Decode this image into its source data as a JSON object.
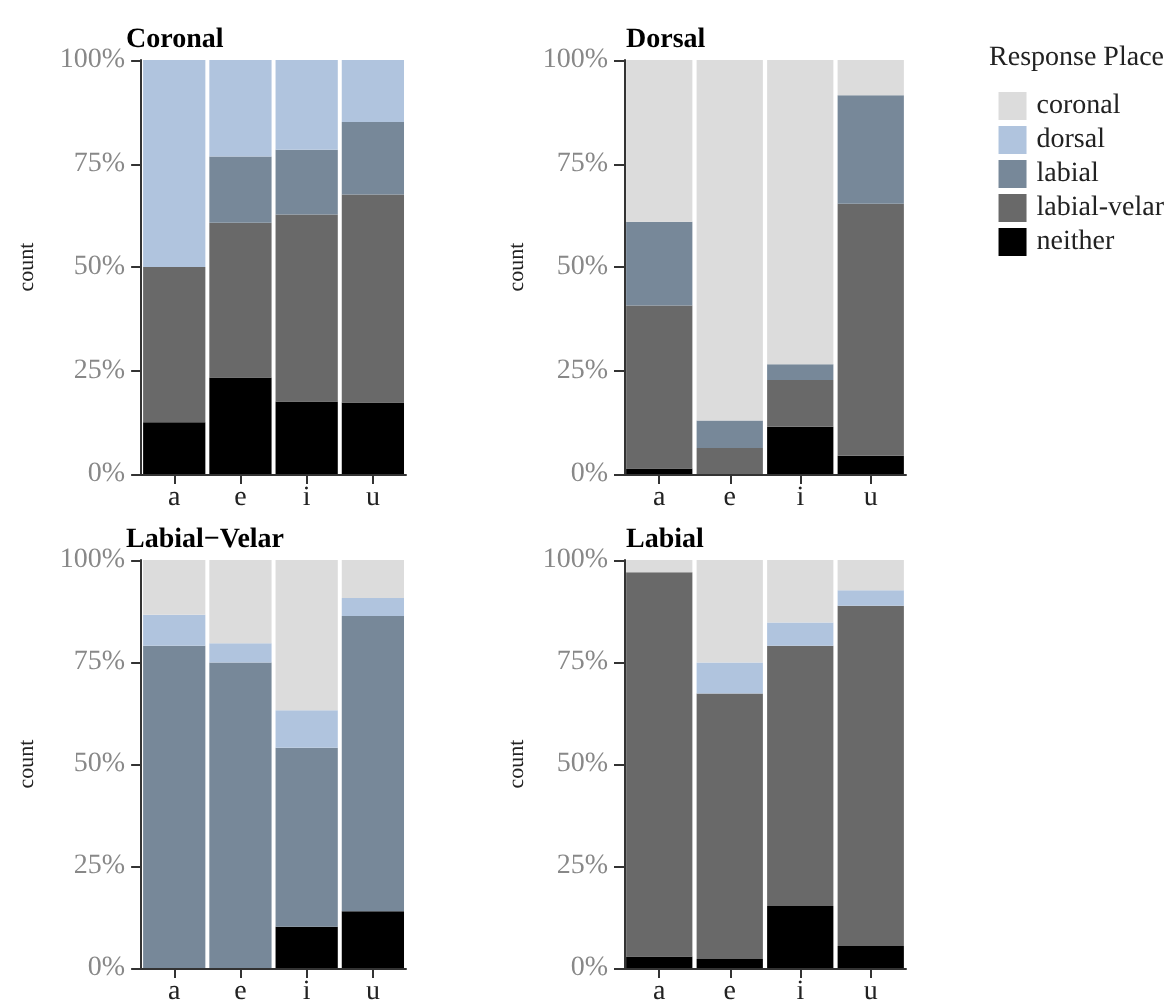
{
  "chart_data": [
    {
      "type": "bar",
      "title": "Coronal",
      "ylabel": "count",
      "categories": [
        "a",
        "e",
        "i",
        "u"
      ],
      "stacked": true,
      "ylim": [
        0,
        100
      ],
      "yticks": [
        {
          "value": 0,
          "label": "0%"
        },
        {
          "value": 25,
          "label": "25%"
        },
        {
          "value": 50,
          "label": "50%"
        },
        {
          "value": 75,
          "label": "75%"
        },
        {
          "value": 100,
          "label": "100%"
        }
      ],
      "grid": false,
      "legend": false,
      "series": [
        {
          "color": "#000000",
          "values": [
            12.5,
            23.3,
            17.5,
            17.3
          ]
        },
        {
          "color": "#696969",
          "values": [
            37.5,
            37.4,
            45.2,
            50.2
          ]
        },
        {
          "color": "#778899",
          "values": [
            0,
            16,
            15.6,
            17.5
          ]
        },
        {
          "color": "#b0c4de",
          "values": [
            50,
            23.3,
            21.7,
            15
          ]
        },
        {
          "color": "#dcdcdc",
          "values": [
            0,
            0,
            0,
            0
          ]
        }
      ]
    },
    {
      "type": "bar",
      "title": "Dorsal",
      "ylabel": "count",
      "legend_title": "Response Place",
      "categories": [
        "a",
        "e",
        "i",
        "u"
      ],
      "stacked": true,
      "ylim": [
        0,
        100
      ],
      "yticks": [
        {
          "value": 0,
          "label": "0%"
        },
        {
          "value": 25,
          "label": "25%"
        },
        {
          "value": 50,
          "label": "50%"
        },
        {
          "value": 75,
          "label": "75%"
        },
        {
          "value": 100,
          "label": "100%"
        }
      ],
      "grid": false,
      "legend": "right",
      "series": [
        {
          "name": "neither",
          "color": "#000000",
          "values": [
            1.3,
            0,
            11.4,
            4.4
          ]
        },
        {
          "name": "labial-velar",
          "color": "#696969",
          "values": [
            39.4,
            6.3,
            11.3,
            60.9
          ]
        },
        {
          "name": "labial",
          "color": "#778899",
          "values": [
            20.2,
            6.6,
            3.8,
            26.2
          ]
        },
        {
          "name": "dorsal",
          "color": "#b0c4de",
          "values": [
            0,
            0,
            0,
            0
          ]
        },
        {
          "name": "coronal",
          "color": "#dcdcdc",
          "values": [
            39.1,
            87.1,
            73.5,
            8.5
          ]
        }
      ]
    },
    {
      "type": "bar",
      "title": "Labial−Velar",
      "ylabel": "count",
      "categories": [
        "a",
        "e",
        "i",
        "u"
      ],
      "stacked": true,
      "ylim": [
        0,
        100
      ],
      "yticks": [
        {
          "value": 0,
          "label": "0%"
        },
        {
          "value": 25,
          "label": "25%"
        },
        {
          "value": 50,
          "label": "50%"
        },
        {
          "value": 75,
          "label": "75%"
        },
        {
          "value": 100,
          "label": "100%"
        }
      ],
      "grid": false,
      "legend": false,
      "series": [
        {
          "color": "#000000",
          "values": [
            0,
            0,
            10.1,
            13.9
          ]
        },
        {
          "color": "#696969",
          "values": [
            0,
            0,
            0,
            0
          ]
        },
        {
          "color": "#778899",
          "values": [
            79,
            74.9,
            43.9,
            72.4
          ]
        },
        {
          "color": "#b0c4de",
          "values": [
            7.6,
            4.7,
            9.2,
            4.4
          ]
        },
        {
          "color": "#dcdcdc",
          "values": [
            13.4,
            20.4,
            36.8,
            9.3
          ]
        }
      ]
    },
    {
      "type": "bar",
      "title": "Labial",
      "ylabel": "count",
      "categories": [
        "a",
        "e",
        "i",
        "u"
      ],
      "stacked": true,
      "ylim": [
        0,
        100
      ],
      "yticks": [
        {
          "value": 0,
          "label": "0%"
        },
        {
          "value": 25,
          "label": "25%"
        },
        {
          "value": 50,
          "label": "50%"
        },
        {
          "value": 75,
          "label": "75%"
        },
        {
          "value": 100,
          "label": "100%"
        }
      ],
      "grid": false,
      "legend": false,
      "series": [
        {
          "color": "#000000",
          "values": [
            2.8,
            2.2,
            15.2,
            5.4
          ]
        },
        {
          "color": "#696969",
          "values": [
            94.2,
            65.1,
            63.8,
            83.4
          ]
        },
        {
          "color": "#778899",
          "values": [
            0,
            0,
            0,
            0
          ]
        },
        {
          "color": "#b0c4de",
          "values": [
            0,
            7.6,
            5.7,
            3.8
          ]
        },
        {
          "color": "#dcdcdc",
          "values": [
            3,
            25.1,
            15.3,
            7.4
          ]
        }
      ]
    }
  ]
}
